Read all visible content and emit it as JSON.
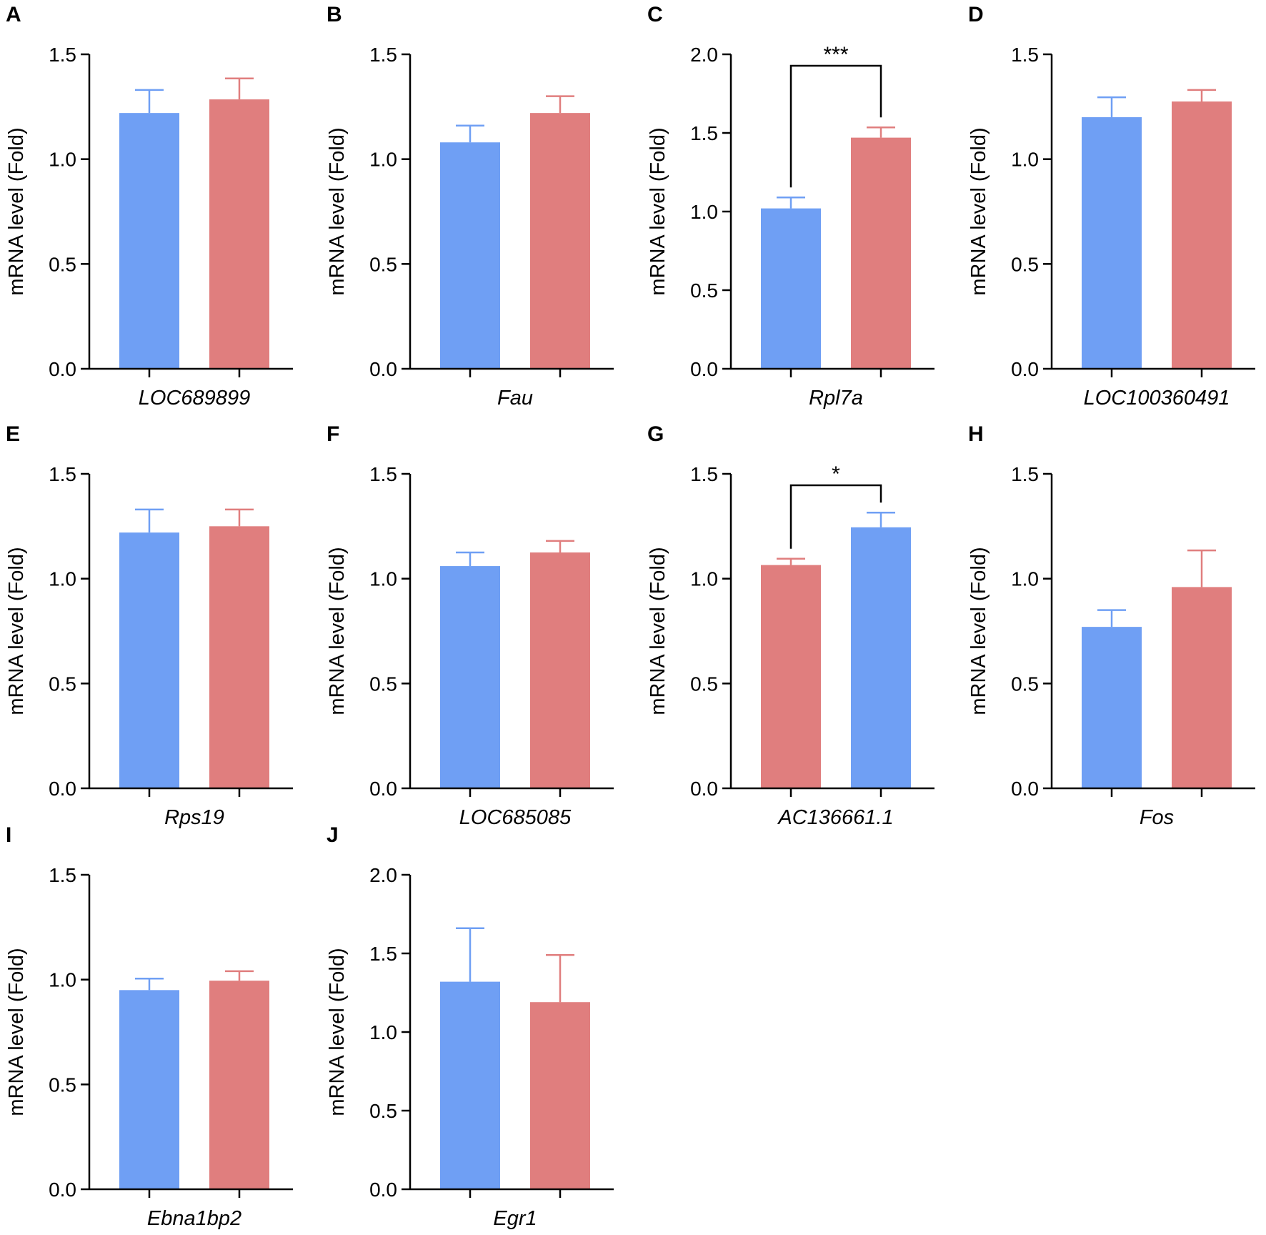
{
  "colors": {
    "blue": "#6f9ff4",
    "red": "#e07e7e",
    "axis": "#000000"
  },
  "chart_data": [
    {
      "type": "bar",
      "panel": "A",
      "ylabel": "mRNA level (Fold)",
      "ylim": [
        0,
        1.5
      ],
      "yticks": [
        "0.0",
        "0.5",
        "1.0",
        "1.5"
      ],
      "category": "LOC689899",
      "bars": [
        {
          "value": 1.22,
          "error": 0.11,
          "color": "blue"
        },
        {
          "value": 1.285,
          "error": 0.1,
          "color": "red"
        }
      ]
    },
    {
      "type": "bar",
      "panel": "B",
      "ylabel": "mRNA level (Fold)",
      "ylim": [
        0,
        1.5
      ],
      "yticks": [
        "0.0",
        "0.5",
        "1.0",
        "1.5"
      ],
      "category": "Fau",
      "bars": [
        {
          "value": 1.08,
          "error": 0.08,
          "color": "blue"
        },
        {
          "value": 1.22,
          "error": 0.08,
          "color": "red"
        }
      ]
    },
    {
      "type": "bar",
      "panel": "C",
      "ylabel": "mRNA level (Fold)",
      "ylim": [
        0,
        2.0
      ],
      "yticks": [
        "0.0",
        "0.5",
        "1.0",
        "1.5",
        "2.0"
      ],
      "category": "Rpl7a",
      "bars": [
        {
          "value": 1.02,
          "error": 0.07,
          "color": "blue"
        },
        {
          "value": 1.47,
          "error": 0.065,
          "color": "red"
        }
      ],
      "significance": "***"
    },
    {
      "type": "bar",
      "panel": "D",
      "ylabel": "mRNA level (Fold)",
      "ylim": [
        0,
        1.5
      ],
      "yticks": [
        "0.0",
        "0.5",
        "1.0",
        "1.5"
      ],
      "category": "LOC100360491",
      "bars": [
        {
          "value": 1.2,
          "error": 0.095,
          "color": "blue"
        },
        {
          "value": 1.275,
          "error": 0.055,
          "color": "red"
        }
      ]
    },
    {
      "type": "bar",
      "panel": "E",
      "ylabel": "mRNA level (Fold)",
      "ylim": [
        0,
        1.5
      ],
      "yticks": [
        "0.0",
        "0.5",
        "1.0",
        "1.5"
      ],
      "category": "Rps19",
      "bars": [
        {
          "value": 1.22,
          "error": 0.11,
          "color": "blue"
        },
        {
          "value": 1.25,
          "error": 0.08,
          "color": "red"
        }
      ]
    },
    {
      "type": "bar",
      "panel": "F",
      "ylabel": "mRNA level (Fold)",
      "ylim": [
        0,
        1.5
      ],
      "yticks": [
        "0.0",
        "0.5",
        "1.0",
        "1.5"
      ],
      "category": "LOC685085",
      "bars": [
        {
          "value": 1.06,
          "error": 0.065,
          "color": "blue"
        },
        {
          "value": 1.125,
          "error": 0.055,
          "color": "red"
        }
      ]
    },
    {
      "type": "bar",
      "panel": "G",
      "ylabel": "mRNA level (Fold)",
      "ylim": [
        0,
        1.5
      ],
      "yticks": [
        "0.0",
        "0.5",
        "1.0",
        "1.5"
      ],
      "category": "AC136661.1",
      "bars": [
        {
          "value": 1.065,
          "error": 0.03,
          "color": "red"
        },
        {
          "value": 1.245,
          "error": 0.07,
          "color": "blue"
        }
      ],
      "significance": "*"
    },
    {
      "type": "bar",
      "panel": "H",
      "ylabel": "mRNA level (Fold)",
      "ylim": [
        0,
        1.5
      ],
      "yticks": [
        "0.0",
        "0.5",
        "1.0",
        "1.5"
      ],
      "category": "Fos",
      "bars": [
        {
          "value": 0.77,
          "error": 0.08,
          "color": "blue"
        },
        {
          "value": 0.96,
          "error": 0.175,
          "color": "red"
        }
      ]
    },
    {
      "type": "bar",
      "panel": "I",
      "ylabel": "mRNA level (Fold)",
      "ylim": [
        0,
        1.5
      ],
      "yticks": [
        "0.0",
        "0.5",
        "1.0",
        "1.5"
      ],
      "category": "Ebna1bp2",
      "bars": [
        {
          "value": 0.95,
          "error": 0.055,
          "color": "blue"
        },
        {
          "value": 0.995,
          "error": 0.045,
          "color": "red"
        }
      ]
    },
    {
      "type": "bar",
      "panel": "J",
      "ylabel": "mRNA level (Fold)",
      "ylim": [
        0,
        2.0
      ],
      "yticks": [
        "0.0",
        "0.5",
        "1.0",
        "1.5",
        "2.0"
      ],
      "category": "Egr1",
      "bars": [
        {
          "value": 1.32,
          "error": 0.34,
          "color": "blue"
        },
        {
          "value": 1.19,
          "error": 0.3,
          "color": "red"
        }
      ]
    }
  ]
}
